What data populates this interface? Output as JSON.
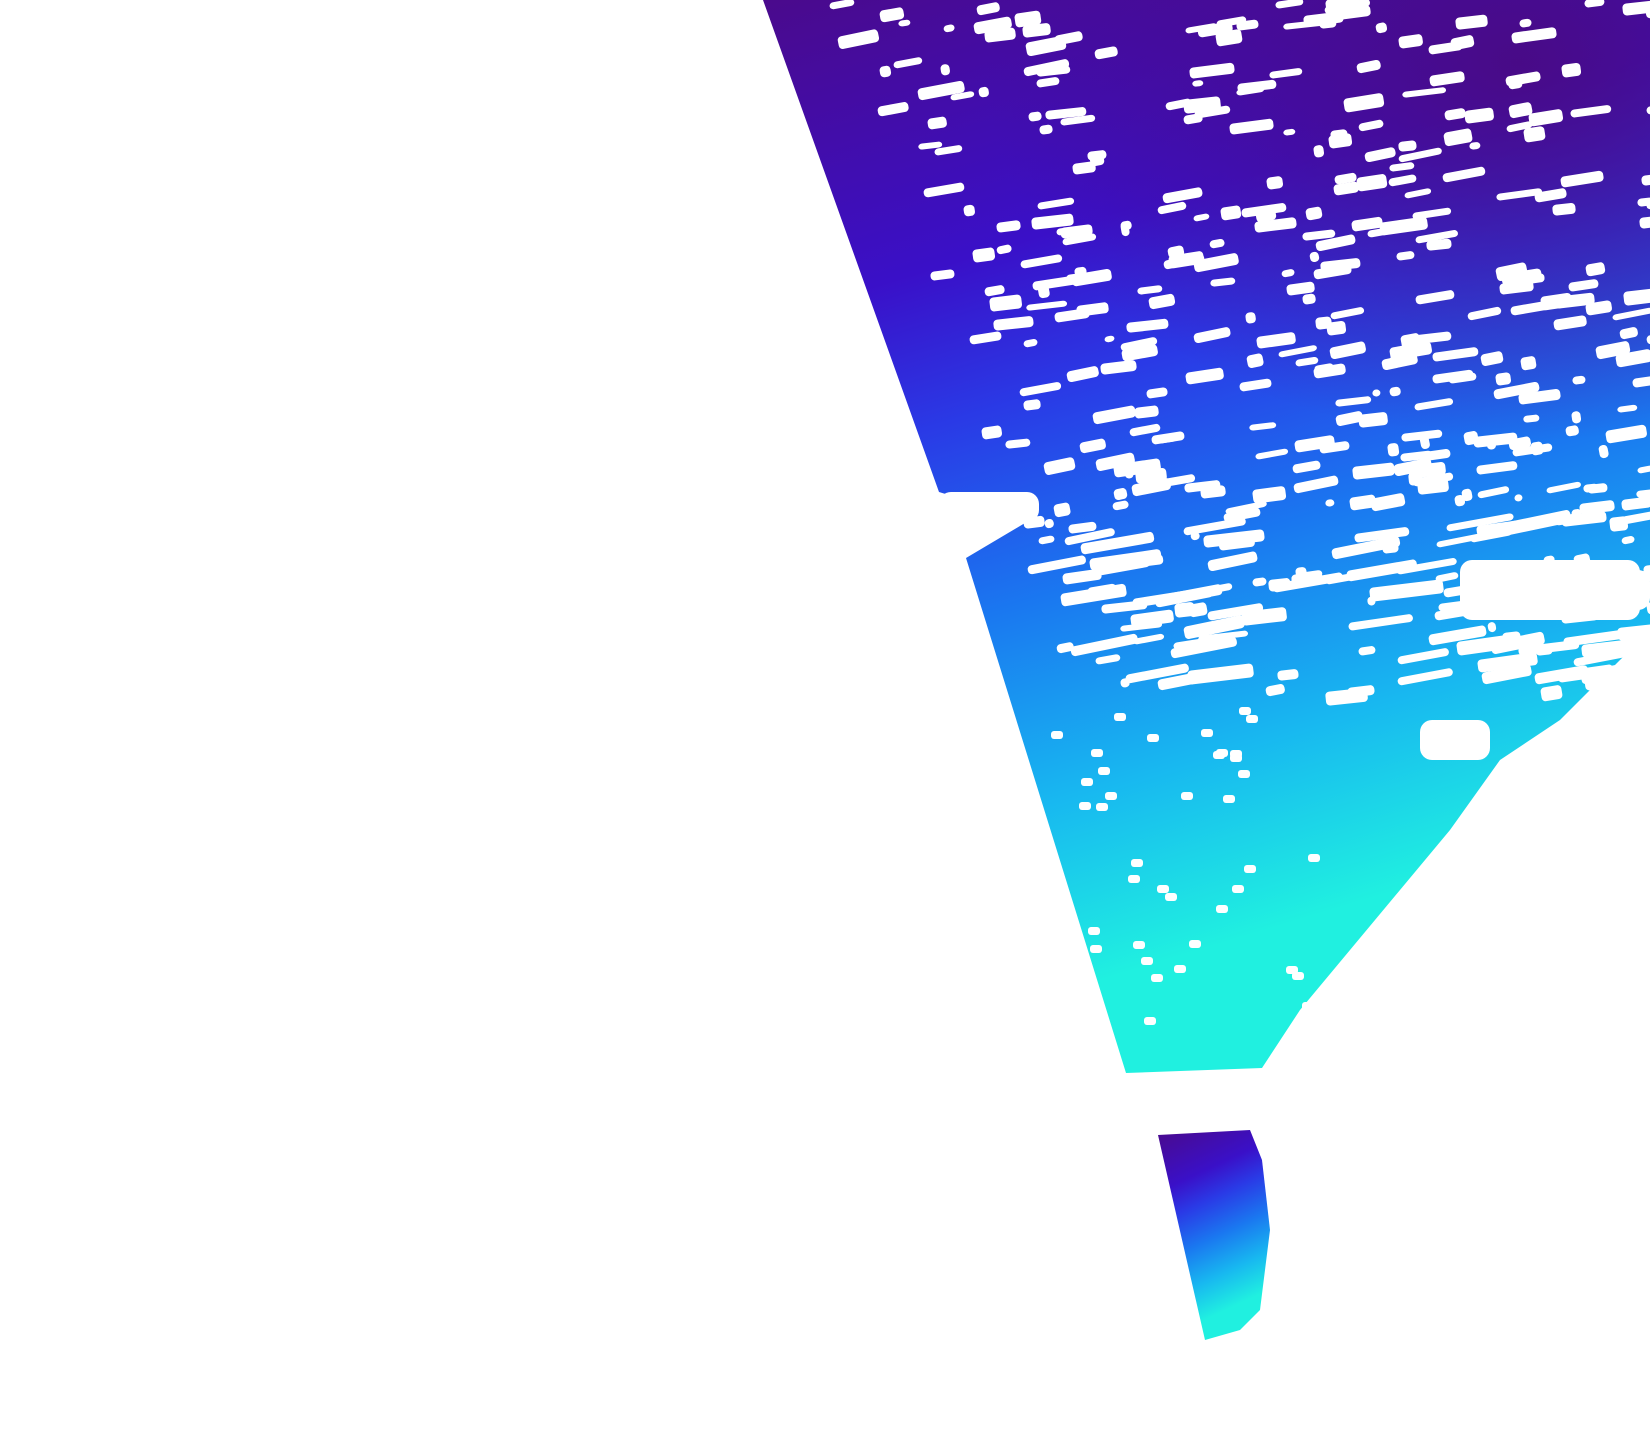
{
  "map": {
    "background_color": "#ffffff",
    "no_data_color": "#ffffff",
    "colormap": [
      "#4a0a8c",
      "#3a10c8",
      "#2a3ae6",
      "#1a78f0",
      "#18b8f0",
      "#20f0e0",
      "#20e040"
    ],
    "layer": "satellite-swath"
  }
}
